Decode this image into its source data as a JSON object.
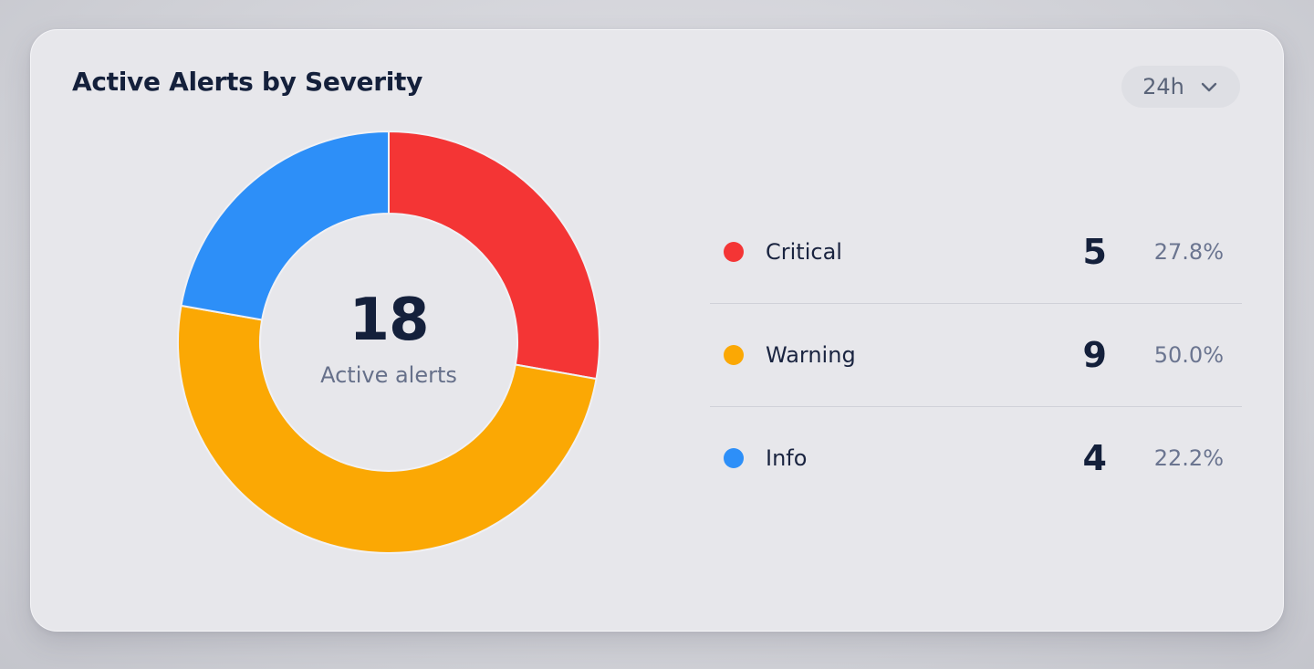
{
  "card": {
    "title": "Active Alerts by Severity",
    "range": {
      "label": "24h",
      "icon": "chevron-down-icon"
    }
  },
  "center": {
    "value": "18",
    "label": "Active alerts"
  },
  "chart_data": {
    "type": "pie",
    "variant": "donut",
    "title": "Active Alerts by Severity",
    "total": 18,
    "categories": [
      "Critical",
      "Warning",
      "Info"
    ],
    "values": [
      5,
      9,
      4
    ],
    "percentages": [
      "27.8%",
      "50.0%",
      "22.2%"
    ],
    "colors": [
      "#f43535",
      "#fba804",
      "#2d8ff8"
    ],
    "start_angle_deg": 0,
    "direction": "clockwise",
    "legend_position": "right"
  },
  "legend": [
    {
      "name": "Critical",
      "count": "5",
      "percent": "27.8%",
      "color": "#f43535"
    },
    {
      "name": "Warning",
      "count": "9",
      "percent": "50.0%",
      "color": "#fba804"
    },
    {
      "name": "Info",
      "count": "4",
      "percent": "22.2%",
      "color": "#2d8ff8"
    }
  ]
}
